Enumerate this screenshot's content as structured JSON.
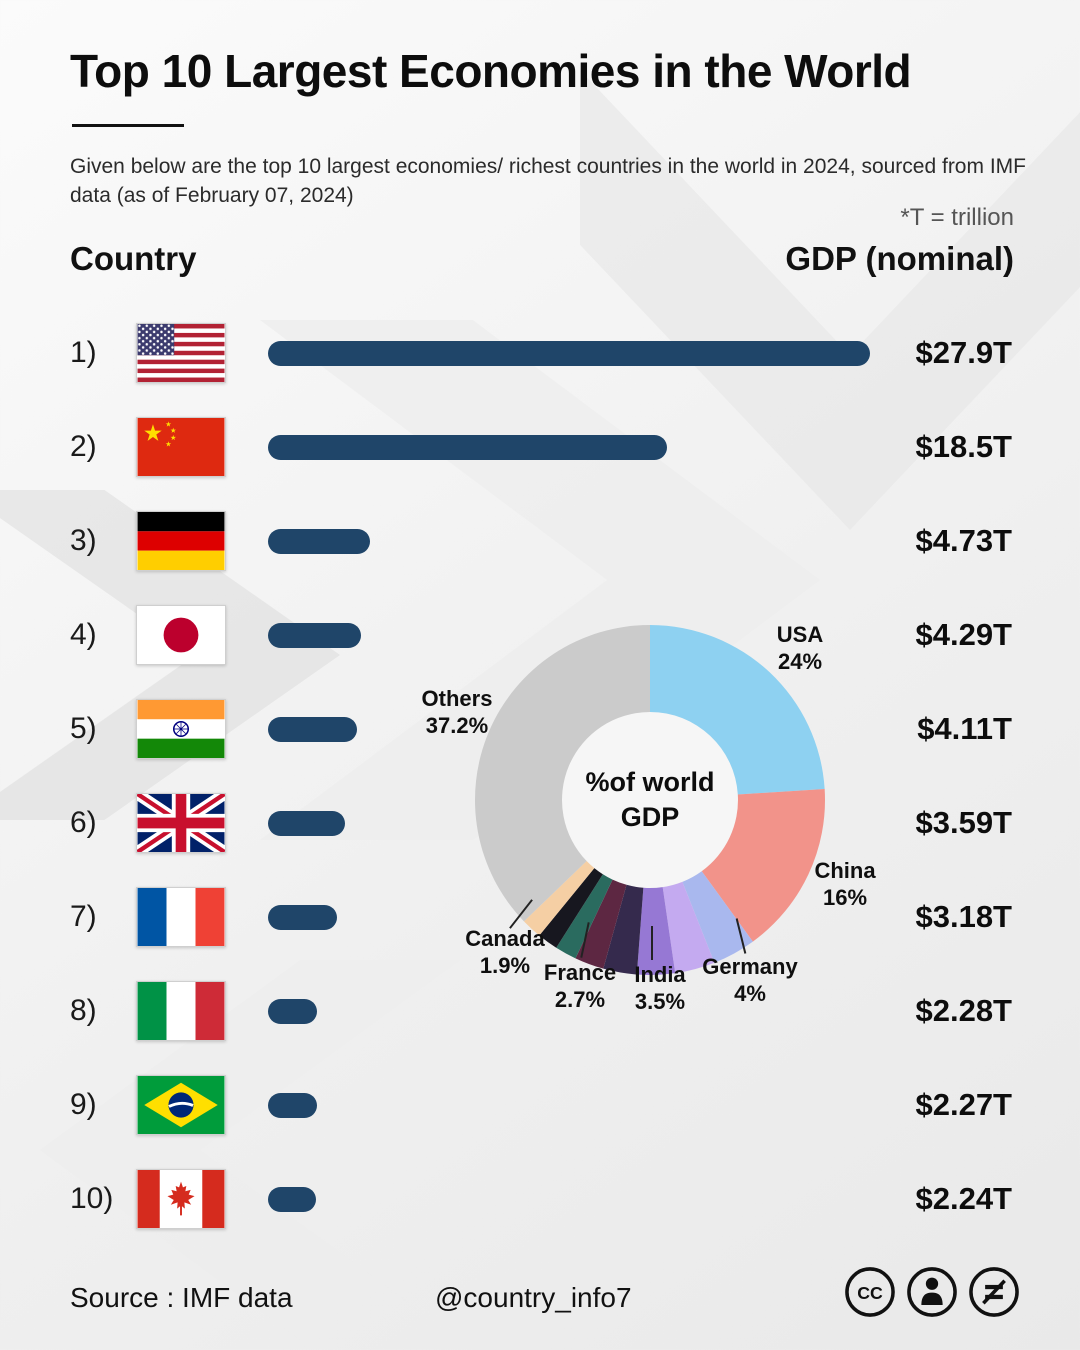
{
  "header": {
    "title": "Top 10 Largest Economies in the World",
    "subtitle": "Given below are the top 10 largest economies/ richest countries in the world in 2024, sourced from IMF data (as of February 07, 2024)",
    "trillion_note": "*T = trillion",
    "country_col": "Country",
    "gdp_col": "GDP (nominal)"
  },
  "colors": {
    "bar": "#1f4569"
  },
  "rows": [
    {
      "rank": "1)",
      "country": "USA",
      "gdp_label": "$27.9T",
      "gdp_trillions": 27.9
    },
    {
      "rank": "2)",
      "country": "China",
      "gdp_label": "$18.5T",
      "gdp_trillions": 18.5
    },
    {
      "rank": "3)",
      "country": "Germany",
      "gdp_label": "$4.73T",
      "gdp_trillions": 4.73
    },
    {
      "rank": "4)",
      "country": "Japan",
      "gdp_label": "$4.29T",
      "gdp_trillions": 4.29
    },
    {
      "rank": "5)",
      "country": "India",
      "gdp_label": "$4.11T",
      "gdp_trillions": 4.11
    },
    {
      "rank": "6)",
      "country": "United Kingdom",
      "gdp_label": "$3.59T",
      "gdp_trillions": 3.59
    },
    {
      "rank": "7)",
      "country": "France",
      "gdp_label": "$3.18T",
      "gdp_trillions": 3.18
    },
    {
      "rank": "8)",
      "country": "Italy",
      "gdp_label": "$2.28T",
      "gdp_trillions": 2.28
    },
    {
      "rank": "9)",
      "country": "Brazil",
      "gdp_label": "$2.27T",
      "gdp_trillions": 2.27
    },
    {
      "rank": "10)",
      "country": "Canada",
      "gdp_label": "$2.24T",
      "gdp_trillions": 2.24
    }
  ],
  "chart_data": {
    "type": "pie",
    "title": "%of world GDP",
    "center_line1": "%of world",
    "center_line2": "GDP",
    "slices": [
      {
        "label": "USA",
        "value": 24,
        "pct_label": "24%",
        "color": "#8ed1f1",
        "labeled": true
      },
      {
        "label": "China",
        "value": 16,
        "pct_label": "16%",
        "color": "#f2938a",
        "labeled": true
      },
      {
        "label": "Germany",
        "value": 4,
        "pct_label": "4%",
        "color": "#a9b8ee",
        "labeled": true
      },
      {
        "label": "Japan",
        "value": 3.7,
        "pct_label": "",
        "color": "#c4aaf0",
        "labeled": false
      },
      {
        "label": "India",
        "value": 3.5,
        "pct_label": "3.5%",
        "color": "#9678d4",
        "labeled": true
      },
      {
        "label": "UK",
        "value": 3.1,
        "pct_label": "",
        "color": "#352a4d",
        "labeled": false
      },
      {
        "label": "France",
        "value": 2.7,
        "pct_label": "2.7%",
        "color": "#5d2742",
        "labeled": true
      },
      {
        "label": "Italy",
        "value": 2.0,
        "pct_label": "",
        "color": "#2a6b5f",
        "labeled": false
      },
      {
        "label": "Brazil",
        "value": 1.9,
        "pct_label": "",
        "color": "#17171f",
        "labeled": false
      },
      {
        "label": "Canada",
        "value": 1.9,
        "pct_label": "1.9%",
        "color": "#f5cfa4",
        "labeled": true
      },
      {
        "label": "Others",
        "value": 37.2,
        "pct_label": "37.2%",
        "color": "#cbcbcb",
        "labeled": true
      }
    ],
    "labels": {
      "usa": {
        "name": "USA",
        "pct": "24%"
      },
      "china": {
        "name": "China",
        "pct": "16%"
      },
      "others": {
        "name": "Others",
        "pct": "37.2%"
      },
      "canada": {
        "name": "Canada",
        "pct": "1.9%"
      },
      "france": {
        "name": "France",
        "pct": "2.7%"
      },
      "india": {
        "name": "India",
        "pct": "3.5%"
      },
      "germany": {
        "name": "Germany",
        "pct": "4%"
      }
    }
  },
  "footer": {
    "source": "Source : IMF data",
    "handle": "@country_info7"
  }
}
